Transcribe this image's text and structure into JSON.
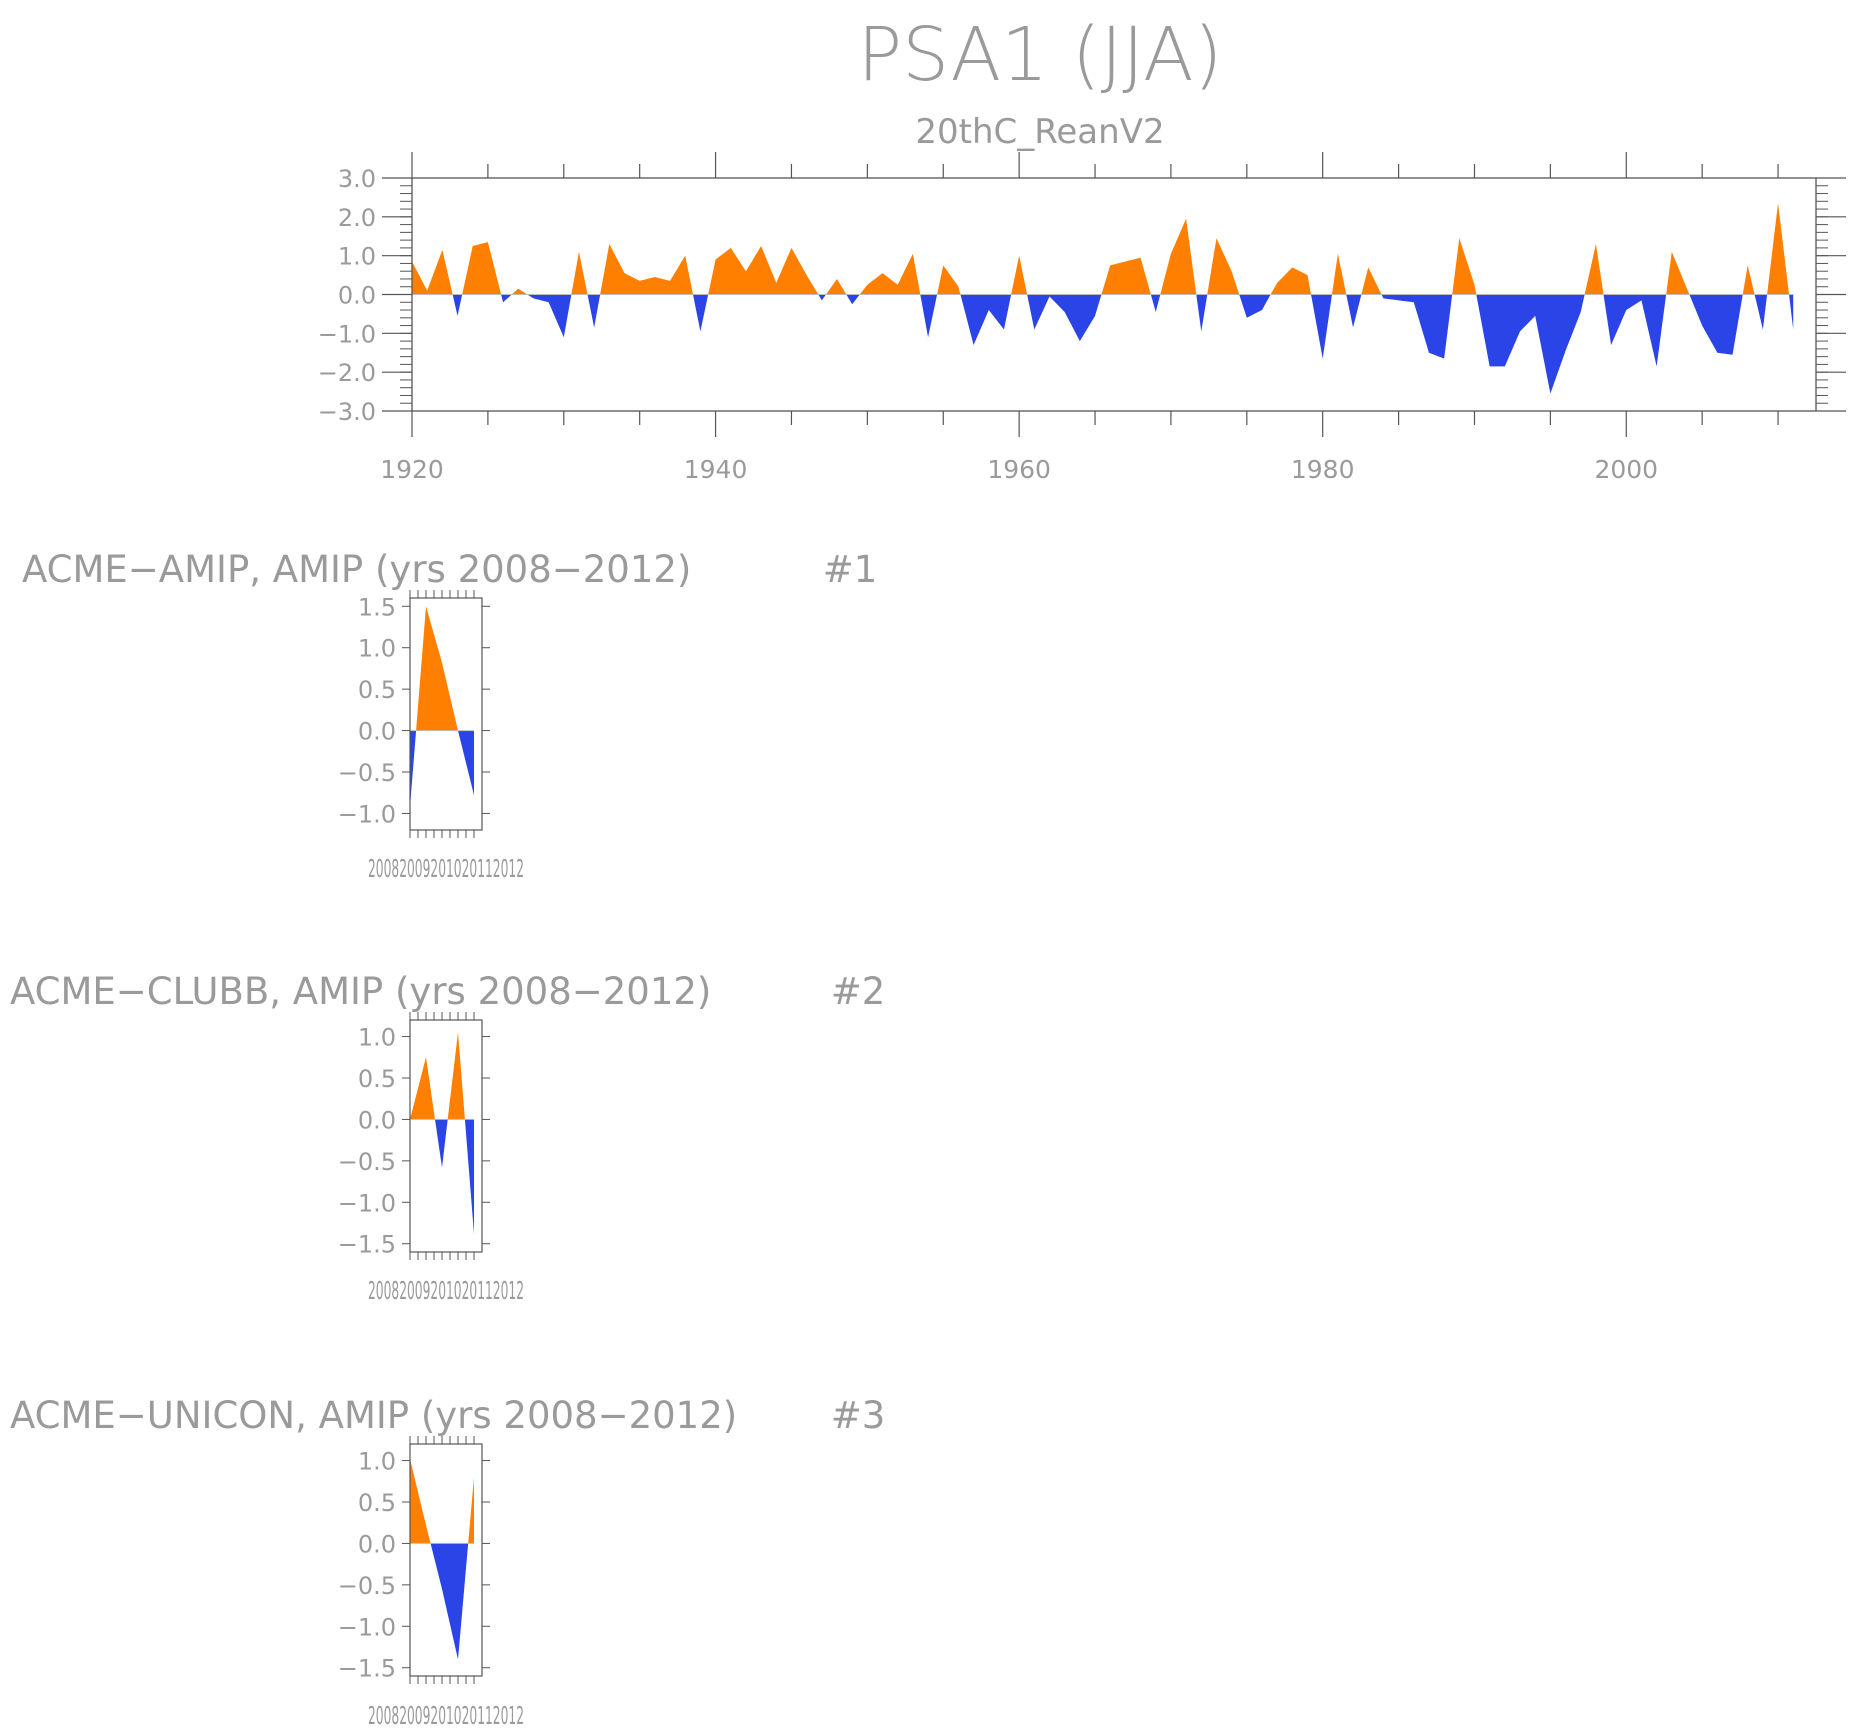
{
  "chart_data": [
    {
      "type": "area",
      "title": "PSA1 (JJA)",
      "subtitle": "20thC_ReanV2",
      "xlim": [
        1920,
        2012
      ],
      "ylim": [
        -3.0,
        3.0
      ],
      "xticks": [
        "1920",
        "1940",
        "1960",
        "1980",
        "2000"
      ],
      "yticks": [
        "3.0",
        "2.0",
        "1.0",
        "0.0",
        "−1.0",
        "−2.0",
        "−3.0"
      ],
      "positive_color": "#ff8000",
      "negative_color": "#2a44e8",
      "series": [
        {
          "x": [
            1920,
            1921,
            1922,
            1923,
            1924,
            1925,
            1926,
            1927,
            1928,
            1929,
            1930,
            1931,
            1932,
            1933,
            1934,
            1935,
            1936,
            1937,
            1938,
            1939,
            1940,
            1941,
            1942,
            1943,
            1944,
            1945,
            1946,
            1947,
            1948,
            1949,
            1950,
            1951,
            1952,
            1953,
            1954,
            1955,
            1956,
            1957,
            1958,
            1959,
            1960,
            1961,
            1962,
            1963,
            1964,
            1965,
            1966,
            1967,
            1968,
            1969,
            1970,
            1971,
            1972,
            1973,
            1974,
            1975,
            1976,
            1977,
            1978,
            1979,
            1980,
            1981,
            1982,
            1983,
            1984,
            1985,
            1986,
            1987,
            1988,
            1989,
            1990,
            1991,
            1992,
            1993,
            1994,
            1995,
            1996,
            1997,
            1998,
            1999,
            2000,
            2001,
            2002,
            2003,
            2004,
            2005,
            2006,
            2007,
            2008,
            2009,
            2010,
            2011
          ],
          "y": [
            0.85,
            0.1,
            1.15,
            -0.55,
            1.25,
            1.35,
            -0.2,
            0.15,
            -0.1,
            -0.2,
            -1.1,
            1.1,
            -0.85,
            1.3,
            0.55,
            0.35,
            0.45,
            0.35,
            1.0,
            -0.95,
            0.9,
            1.2,
            0.6,
            1.25,
            0.3,
            1.2,
            0.5,
            -0.15,
            0.4,
            -0.25,
            0.25,
            0.55,
            0.25,
            1.05,
            -1.1,
            0.75,
            0.2,
            -1.3,
            -0.4,
            -0.9,
            1.0,
            -0.9,
            -0.05,
            -0.45,
            -1.2,
            -0.55,
            0.75,
            0.85,
            0.95,
            -0.45,
            1.05,
            1.95,
            -0.95,
            1.45,
            0.6,
            -0.6,
            -0.4,
            0.3,
            0.7,
            0.5,
            -1.65,
            1.05,
            -0.85,
            0.7,
            -0.1,
            -0.15,
            -0.2,
            -1.5,
            -1.65,
            1.45,
            0.25,
            -1.85,
            -1.85,
            -0.95,
            -0.55,
            -2.55,
            -1.45,
            -0.45,
            1.3,
            -1.3,
            -0.4,
            -0.15,
            -1.85,
            1.1,
            0.15,
            -0.8,
            -1.5,
            -1.55,
            0.75,
            -0.9,
            2.35,
            -0.9
          ]
        }
      ]
    },
    {
      "type": "area",
      "title": "ACME−AMIP, AMIP (yrs 2008−2012)",
      "panel_label": "#1",
      "xlim": [
        2008,
        2012
      ],
      "ylim": [
        -1.2,
        1.6
      ],
      "xtick_label_text": "20082009201020112012",
      "yticks": [
        "1.5",
        "1.0",
        "0.5",
        "0.0",
        "−0.5",
        "−1.0"
      ],
      "x": [
        2008,
        2009,
        2010,
        2011,
        2012
      ],
      "y": [
        -0.92,
        1.5,
        0.82,
        0.0,
        -0.78
      ]
    },
    {
      "type": "area",
      "title": "ACME−CLUBB, AMIP (yrs 2008−2012)",
      "panel_label": "#2",
      "xlim": [
        2008,
        2012
      ],
      "ylim": [
        -1.6,
        1.2
      ],
      "xtick_label_text": "20082009201020112012",
      "yticks": [
        "1.0",
        "0.5",
        "0.0",
        "−0.5",
        "−1.0",
        "−1.5"
      ],
      "x": [
        2008,
        2009,
        2010,
        2011,
        2012
      ],
      "y": [
        0.0,
        0.75,
        -0.58,
        1.05,
        -1.38
      ]
    },
    {
      "type": "area",
      "title": "ACME−UNICON, AMIP (yrs 2008−2012)",
      "panel_label": "#3",
      "xlim": [
        2008,
        2012
      ],
      "ylim": [
        -1.6,
        1.2
      ],
      "xtick_label_text": "20082009201020112012",
      "yticks": [
        "1.0",
        "0.5",
        "0.0",
        "−0.5",
        "−1.0",
        "−1.5"
      ],
      "x": [
        2008,
        2009,
        2010,
        2011,
        2012
      ],
      "y": [
        1.02,
        0.22,
        -0.55,
        -1.4,
        0.8
      ]
    }
  ]
}
